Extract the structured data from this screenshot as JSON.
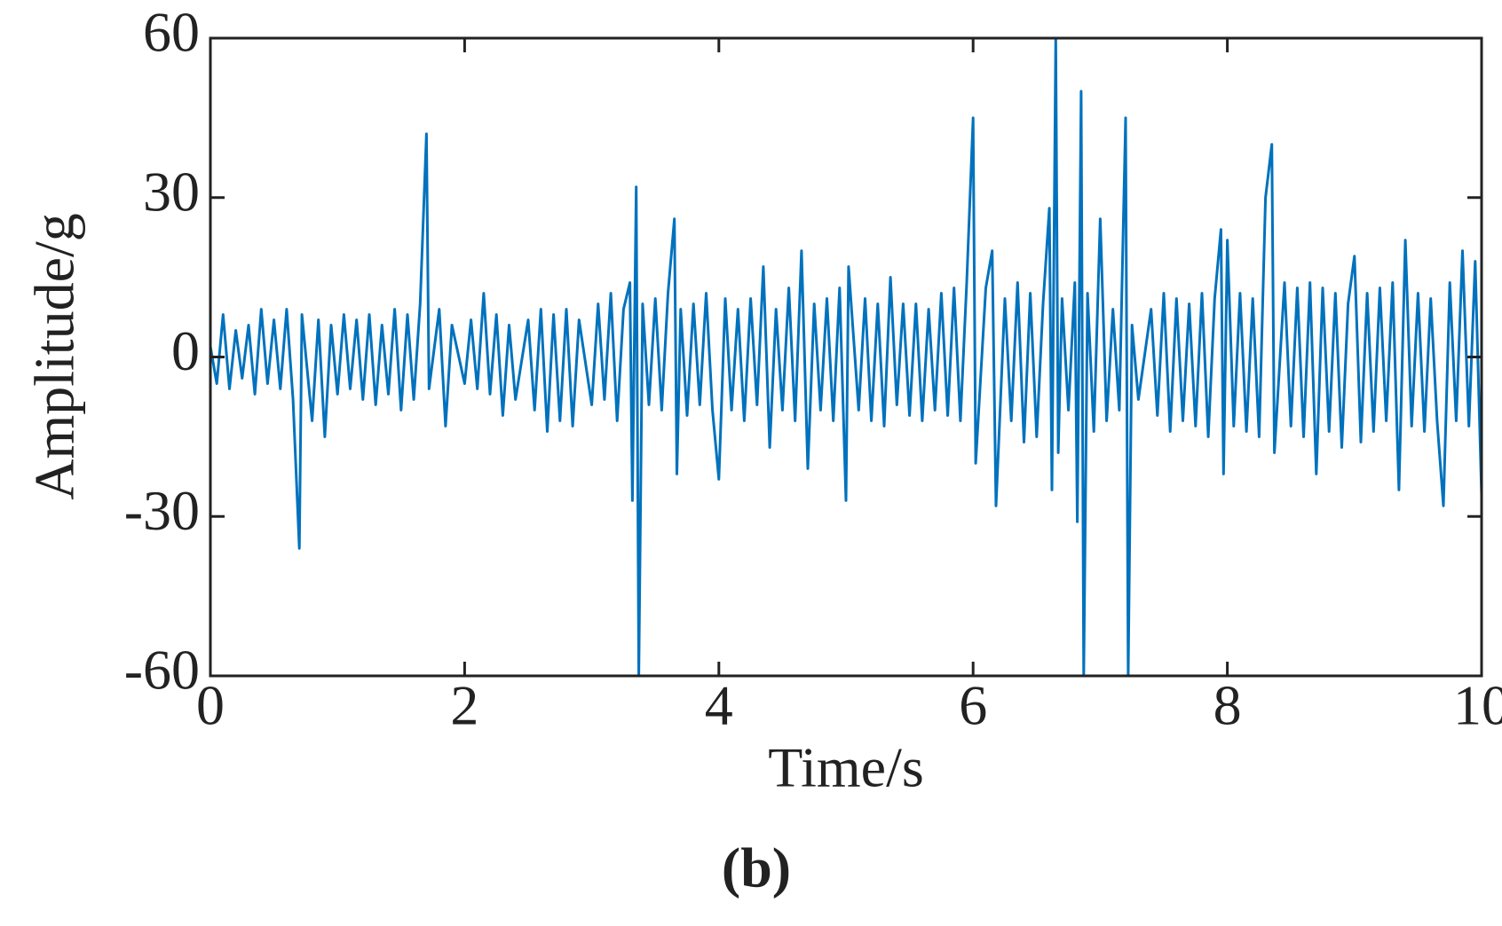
{
  "chart_data": {
    "type": "line",
    "caption": "(b)",
    "x_label": "Time/s",
    "y_label": "Amplitude/g",
    "color": "#0072bd",
    "xlim": [
      0,
      10
    ],
    "xticks": [
      0,
      2,
      4,
      6,
      8,
      10
    ],
    "ylim": [
      -60,
      60
    ],
    "yticks": [
      -60,
      -30,
      0,
      30,
      60
    ],
    "x": [
      0,
      0.05,
      0.1,
      0.15,
      0.2,
      0.25,
      0.3,
      0.35,
      0.4,
      0.45,
      0.5,
      0.55,
      0.6,
      0.65,
      0.7,
      0.72,
      0.8,
      0.85,
      0.9,
      0.95,
      1.0,
      1.05,
      1.1,
      1.15,
      1.2,
      1.25,
      1.3,
      1.35,
      1.4,
      1.45,
      1.5,
      1.55,
      1.6,
      1.65,
      1.7,
      1.72,
      1.8,
      1.85,
      1.9,
      2.0,
      2.05,
      2.1,
      2.15,
      2.2,
      2.25,
      2.3,
      2.35,
      2.4,
      2.5,
      2.55,
      2.6,
      2.65,
      2.7,
      2.75,
      2.8,
      2.85,
      2.9,
      3.0,
      3.05,
      3.1,
      3.15,
      3.2,
      3.25,
      3.3,
      3.32,
      3.35,
      3.37,
      3.4,
      3.45,
      3.5,
      3.55,
      3.6,
      3.65,
      3.67,
      3.7,
      3.75,
      3.8,
      3.85,
      3.9,
      3.95,
      4.0,
      4.05,
      4.1,
      4.15,
      4.2,
      4.25,
      4.3,
      4.35,
      4.4,
      4.45,
      4.5,
      4.55,
      4.6,
      4.65,
      4.7,
      4.75,
      4.8,
      4.85,
      4.9,
      4.95,
      5.0,
      5.02,
      5.1,
      5.15,
      5.2,
      5.25,
      5.3,
      5.35,
      5.4,
      5.45,
      5.5,
      5.55,
      5.6,
      5.65,
      5.7,
      5.75,
      5.8,
      5.85,
      5.9,
      5.95,
      6.0,
      6.02,
      6.1,
      6.15,
      6.18,
      6.25,
      6.3,
      6.35,
      6.4,
      6.45,
      6.5,
      6.55,
      6.6,
      6.62,
      6.65,
      6.67,
      6.7,
      6.75,
      6.8,
      6.82,
      6.85,
      6.87,
      6.9,
      6.95,
      7.0,
      7.05,
      7.1,
      7.15,
      7.2,
      7.22,
      7.25,
      7.3,
      7.4,
      7.45,
      7.5,
      7.55,
      7.6,
      7.65,
      7.7,
      7.75,
      7.8,
      7.85,
      7.9,
      7.95,
      7.97,
      8.0,
      8.05,
      8.1,
      8.15,
      8.2,
      8.25,
      8.3,
      8.35,
      8.37,
      8.45,
      8.5,
      8.55,
      8.6,
      8.65,
      8.7,
      8.75,
      8.8,
      8.85,
      8.9,
      8.95,
      9.0,
      9.05,
      9.1,
      9.15,
      9.2,
      9.25,
      9.3,
      9.35,
      9.4,
      9.45,
      9.5,
      9.55,
      9.6,
      9.65,
      9.7,
      9.75,
      9.8,
      9.85,
      9.9,
      9.95,
      10.0
    ],
    "values": [
      2,
      -5,
      8,
      -6,
      5,
      -4,
      6,
      -7,
      9,
      -5,
      7,
      -6,
      9,
      -8,
      -36,
      8,
      -12,
      7,
      -15,
      6,
      -7,
      8,
      -6,
      7,
      -8,
      8,
      -9,
      6,
      -7,
      9,
      -10,
      8,
      -8,
      10,
      42,
      -6,
      9,
      -13,
      6,
      -5,
      7,
      -6,
      12,
      -7,
      8,
      -11,
      6,
      -8,
      7,
      -10,
      9,
      -14,
      8,
      -12,
      9,
      -13,
      7,
      -9,
      10,
      -8,
      12,
      -12,
      9,
      14,
      -27,
      32,
      -60,
      10,
      -9,
      11,
      -10,
      12,
      26,
      -22,
      9,
      -11,
      10,
      -9,
      12,
      -10,
      -23,
      11,
      -10,
      9,
      -12,
      11,
      -9,
      17,
      -17,
      9,
      -10,
      13,
      -12,
      20,
      -21,
      10,
      -10,
      11,
      -12,
      13,
      -27,
      17,
      -10,
      11,
      -12,
      10,
      -13,
      15,
      -9,
      10,
      -11,
      10,
      -12,
      9,
      -10,
      12,
      -11,
      13,
      -12,
      14,
      45,
      -20,
      13,
      20,
      -28,
      11,
      -12,
      14,
      -16,
      12,
      -15,
      10,
      28,
      -25,
      60,
      -18,
      11,
      -10,
      14,
      -31,
      50,
      -60,
      12,
      -14,
      26,
      -12,
      9,
      -10,
      45,
      -60,
      6,
      -8,
      9,
      -11,
      12,
      -14,
      11,
      -12,
      10,
      -13,
      12,
      -15,
      11,
      24,
      -22,
      22,
      -13,
      12,
      -14,
      11,
      -15,
      30,
      40,
      -18,
      14,
      -13,
      13,
      -15,
      14,
      -22,
      13,
      -14,
      12,
      -17,
      10,
      19,
      -16,
      12,
      -14,
      13,
      -12,
      14,
      -25,
      22,
      -13,
      12,
      -14,
      11,
      -12,
      -28,
      14,
      -12,
      20,
      -13,
      18,
      -26
    ]
  }
}
